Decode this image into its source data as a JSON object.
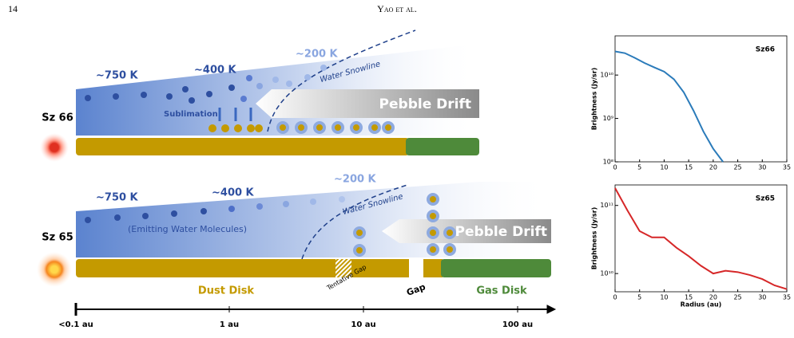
{
  "header": {
    "page_number": "14",
    "running_head": "Yao et al."
  },
  "diagram": {
    "top_panel": {
      "star": "Sz 66",
      "temps": [
        "∼750 K",
        "∼400 K",
        "∼200 K"
      ],
      "snowline": "Water Snowline",
      "sublimation": "Sublimation",
      "drift": "Pebble Drift"
    },
    "bottom_panel": {
      "star": "Sz 65",
      "temps": [
        "∼750 K",
        "∼400 K",
        "∼200 K"
      ],
      "emitting": "(Emitting Water Molecules)",
      "snowline": "Water Snowline",
      "drift": "Pebble Drift",
      "dust": "Dust Disk",
      "tentative_gap": "Tentative Gap",
      "gap": "Gap",
      "gas": "Gas Disk"
    },
    "axis_labels": [
      "<0.1 au",
      "1 au",
      "10 au",
      "100 au"
    ]
  },
  "chart_data": [
    {
      "type": "line",
      "title": "Sz66",
      "ylabel": "Brightness (Jy/sr)",
      "log_y": true,
      "x": [
        0,
        2,
        4,
        6,
        8,
        10,
        12,
        14,
        16,
        18,
        20,
        22
      ],
      "series": [
        {
          "color": "#2b7bba",
          "values": [
            35000000000,
            32000000000,
            25000000000,
            19000000000,
            15000000000,
            12000000000,
            8000000000,
            4000000000,
            1500000000,
            500000000,
            200000000,
            100000000
          ]
        }
      ],
      "xlim": [
        0,
        35
      ],
      "xticks": [
        0,
        5,
        10,
        15,
        20,
        25,
        30,
        35
      ],
      "ylim": [
        100000000,
        80000000000
      ],
      "yticks": [
        {
          "value": 100000000,
          "label": "10⁸"
        },
        {
          "value": 1000000000,
          "label": "10⁹"
        },
        {
          "value": 10000000000,
          "label": "10¹⁰"
        }
      ]
    },
    {
      "type": "line",
      "title": "Sz65",
      "ylabel": "Brightness (Jy/sr)",
      "xlabel": "Radius (au)",
      "log_y": true,
      "x": [
        0,
        2.5,
        5,
        7.5,
        10,
        12.5,
        15,
        17.5,
        20,
        22.5,
        25,
        27.5,
        30,
        32.5,
        35
      ],
      "series": [
        {
          "color": "#d62728",
          "values": [
            180000000000,
            85000000000,
            42000000000,
            34000000000,
            34000000000,
            24000000000,
            18000000000,
            13000000000,
            10000000000,
            11000000000,
            10500000000,
            9500000000,
            8300000000,
            6700000000,
            5900000000
          ]
        }
      ],
      "xlim": [
        0,
        35
      ],
      "xticks": [
        0,
        5,
        10,
        15,
        20,
        25,
        30,
        35
      ],
      "ylim": [
        5400000000,
        200000000000
      ],
      "yticks": [
        {
          "value": 10000000000,
          "label": "10¹⁰"
        },
        {
          "value": 100000000000,
          "label": "10¹¹"
        }
      ]
    }
  ]
}
